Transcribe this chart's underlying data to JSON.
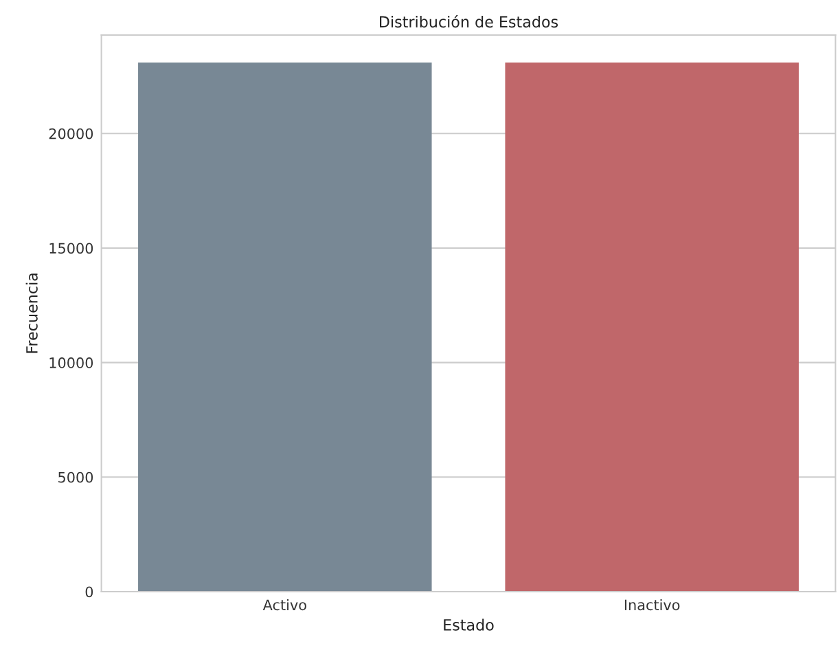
{
  "chart_data": {
    "type": "bar",
    "title": "Distribución de Estados",
    "xlabel": "Estado",
    "ylabel": "Frecuencia",
    "categories": [
      "Activo",
      "Inactivo"
    ],
    "values": [
      23100,
      23100
    ],
    "colors": [
      "#788895",
      "#c0676a"
    ],
    "ylim": [
      0,
      24300
    ],
    "yticks": [
      0,
      5000,
      10000,
      15000,
      20000
    ],
    "grid": "y"
  }
}
